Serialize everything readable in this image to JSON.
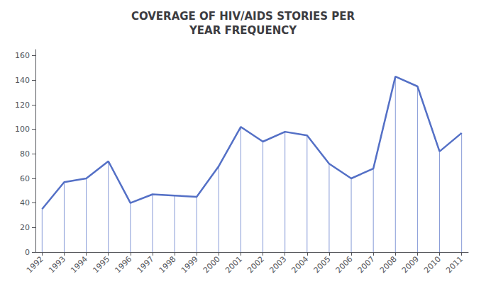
{
  "chart_data": {
    "type": "line",
    "title": "COVERAGE OF HIV/AIDS STORIES PER\nYEAR FREQUENCY",
    "x": [
      1992,
      1993,
      1994,
      1995,
      1996,
      1997,
      1998,
      1999,
      2000,
      2001,
      2002,
      2003,
      2004,
      2005,
      2006,
      2007,
      2008,
      2009,
      2010,
      2011
    ],
    "values": [
      35,
      57,
      60,
      74,
      40,
      47,
      46,
      45,
      70,
      102,
      90,
      98,
      95,
      72,
      60,
      68,
      143,
      135,
      82,
      97
    ],
    "color": "#5470c6",
    "xlim": [
      1991.7,
      2011.3
    ],
    "xticks": [
      1992,
      1993,
      1994,
      1995,
      1996,
      1997,
      1998,
      1999,
      2000,
      2001,
      2002,
      2003,
      2004,
      2005,
      2006,
      2007,
      2008,
      2009,
      2010,
      2011
    ],
    "ylim": [
      0,
      165
    ],
    "yticks": [
      0,
      20,
      40,
      60,
      80,
      100,
      120,
      140,
      160
    ],
    "grid": false
  }
}
